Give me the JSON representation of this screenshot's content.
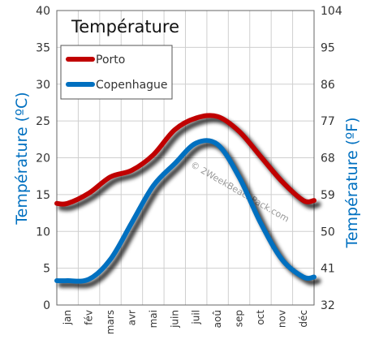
{
  "chart_data": {
    "type": "line",
    "title": "Température",
    "categories": [
      "jan",
      "fév",
      "mars",
      "avr",
      "mai",
      "juin",
      "juil",
      "aoû",
      "sep",
      "oct",
      "nov",
      "déc"
    ],
    "series": [
      {
        "name": "Porto",
        "color": "#c00000",
        "values": [
          13.8,
          15.2,
          17.4,
          18.3,
          20.4,
          23.8,
          25.4,
          25.6,
          23.6,
          20.2,
          16.8,
          14.2
        ]
      },
      {
        "name": "Copenhague",
        "color": "#0070c0",
        "values": [
          3.3,
          3.5,
          6.2,
          11.2,
          16.2,
          19.2,
          22.0,
          21.8,
          17.4,
          11.2,
          6.2,
          3.8
        ]
      }
    ],
    "ylabel_left": "Température  (ºC)",
    "ylabel_right": "Température  (ºF)",
    "ylim": [
      0,
      40
    ],
    "yticks_left": [
      0,
      5,
      10,
      15,
      20,
      25,
      30,
      35,
      40
    ],
    "yticks_right": [
      32,
      41,
      50,
      59,
      68,
      77,
      86,
      95,
      104
    ],
    "grid": true,
    "legend_position": "top-left",
    "watermark": "© 2WeekBeachPack.com"
  }
}
